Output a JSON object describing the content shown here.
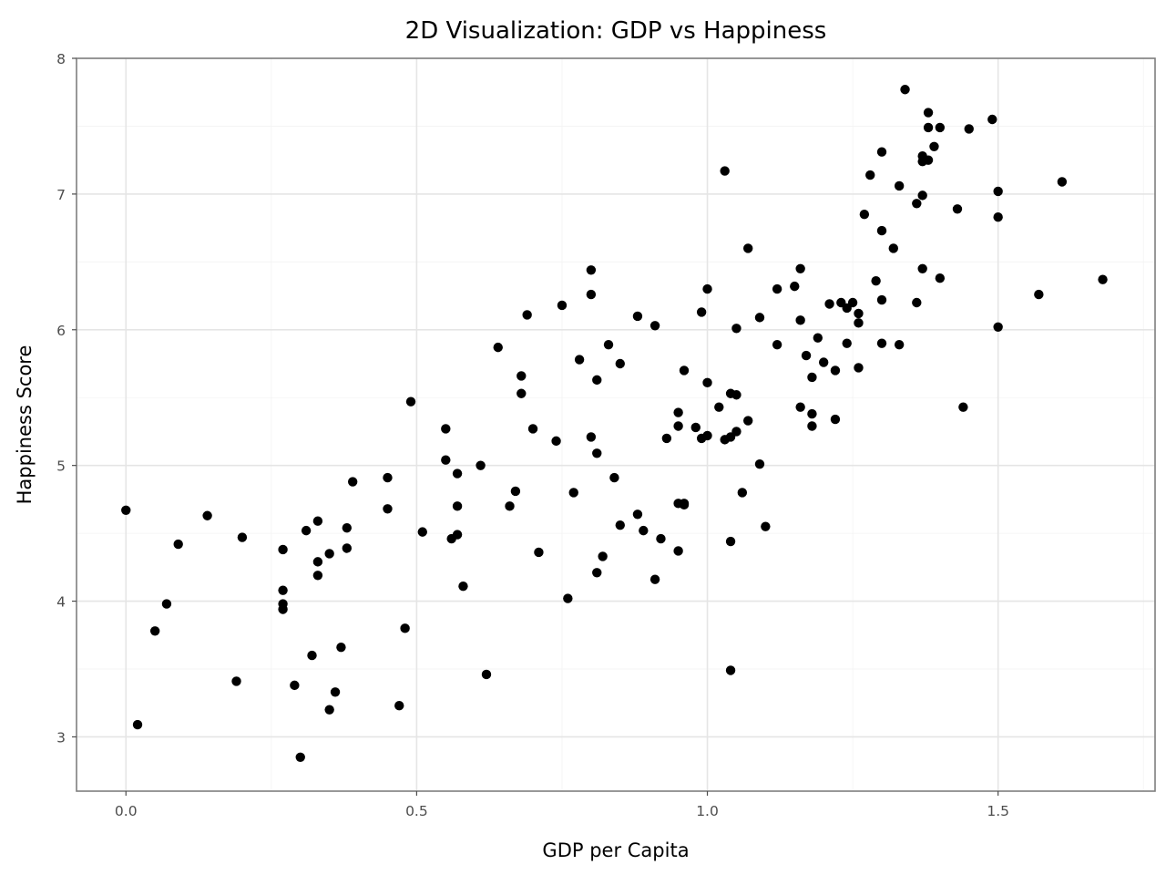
{
  "chart_data": {
    "type": "scatter",
    "title": "2D Visualization: GDP vs Happiness",
    "xlabel": "GDP per Capita",
    "ylabel": "Happiness Score",
    "xlim": [
      -0.085,
      1.77
    ],
    "ylim": [
      2.6,
      8.0
    ],
    "x_ticks": [
      0.0,
      0.5,
      1.0,
      1.5
    ],
    "x_tick_labels": [
      "0.0",
      "0.5",
      "1.0",
      "1.5"
    ],
    "y_ticks": [
      3,
      4,
      5,
      6,
      7,
      8
    ],
    "y_tick_labels": [
      "3",
      "4",
      "5",
      "6",
      "7",
      "8"
    ],
    "grid": true,
    "legend": "none",
    "point_color": "#000000",
    "points": [
      [
        0.0,
        4.67
      ],
      [
        0.02,
        3.09
      ],
      [
        0.05,
        3.78
      ],
      [
        0.07,
        3.98
      ],
      [
        0.09,
        4.42
      ],
      [
        0.14,
        4.63
      ],
      [
        0.19,
        3.41
      ],
      [
        0.2,
        4.47
      ],
      [
        0.27,
        4.38
      ],
      [
        0.27,
        4.08
      ],
      [
        0.27,
        3.98
      ],
      [
        0.27,
        3.94
      ],
      [
        0.29,
        3.38
      ],
      [
        0.3,
        2.85
      ],
      [
        0.31,
        4.52
      ],
      [
        0.32,
        3.6
      ],
      [
        0.33,
        4.59
      ],
      [
        0.33,
        4.19
      ],
      [
        0.33,
        4.29
      ],
      [
        0.35,
        4.35
      ],
      [
        0.35,
        3.2
      ],
      [
        0.36,
        3.33
      ],
      [
        0.37,
        3.66
      ],
      [
        0.38,
        4.54
      ],
      [
        0.38,
        4.39
      ],
      [
        0.39,
        4.88
      ],
      [
        0.45,
        4.91
      ],
      [
        0.45,
        4.68
      ],
      [
        0.47,
        3.23
      ],
      [
        0.48,
        3.8
      ],
      [
        0.49,
        5.47
      ],
      [
        0.51,
        4.51
      ],
      [
        0.55,
        5.27
      ],
      [
        0.55,
        5.04
      ],
      [
        0.56,
        4.46
      ],
      [
        0.57,
        4.94
      ],
      [
        0.57,
        4.49
      ],
      [
        0.57,
        4.7
      ],
      [
        0.58,
        4.11
      ],
      [
        0.61,
        5.0
      ],
      [
        0.62,
        3.46
      ],
      [
        0.64,
        5.87
      ],
      [
        0.66,
        4.7
      ],
      [
        0.67,
        4.81
      ],
      [
        0.68,
        5.66
      ],
      [
        0.68,
        5.53
      ],
      [
        0.69,
        6.11
      ],
      [
        0.7,
        5.27
      ],
      [
        0.71,
        4.36
      ],
      [
        0.74,
        5.18
      ],
      [
        0.75,
        6.18
      ],
      [
        0.76,
        4.02
      ],
      [
        0.77,
        4.8
      ],
      [
        0.78,
        5.78
      ],
      [
        0.8,
        6.26
      ],
      [
        0.8,
        6.44
      ],
      [
        0.8,
        5.21
      ],
      [
        0.81,
        5.63
      ],
      [
        0.81,
        4.21
      ],
      [
        0.81,
        5.09
      ],
      [
        0.82,
        4.33
      ],
      [
        0.83,
        5.89
      ],
      [
        0.84,
        4.91
      ],
      [
        0.85,
        4.56
      ],
      [
        0.85,
        5.75
      ],
      [
        0.88,
        6.1
      ],
      [
        0.88,
        4.64
      ],
      [
        0.89,
        4.52
      ],
      [
        0.91,
        6.03
      ],
      [
        0.91,
        4.16
      ],
      [
        0.92,
        4.46
      ],
      [
        0.93,
        5.2
      ],
      [
        0.95,
        5.39
      ],
      [
        0.95,
        5.29
      ],
      [
        0.95,
        4.72
      ],
      [
        0.95,
        4.37
      ],
      [
        0.96,
        5.7
      ],
      [
        0.96,
        4.71
      ],
      [
        0.96,
        4.72
      ],
      [
        0.98,
        5.28
      ],
      [
        0.99,
        5.2
      ],
      [
        0.99,
        6.13
      ],
      [
        1.0,
        6.3
      ],
      [
        1.0,
        5.22
      ],
      [
        1.0,
        5.61
      ],
      [
        1.02,
        5.43
      ],
      [
        1.03,
        5.19
      ],
      [
        1.03,
        7.17
      ],
      [
        1.04,
        5.53
      ],
      [
        1.04,
        5.21
      ],
      [
        1.04,
        4.44
      ],
      [
        1.04,
        3.49
      ],
      [
        1.05,
        5.52
      ],
      [
        1.05,
        6.01
      ],
      [
        1.05,
        5.25
      ],
      [
        1.06,
        4.8
      ],
      [
        1.07,
        5.33
      ],
      [
        1.07,
        6.6
      ],
      [
        1.09,
        5.01
      ],
      [
        1.09,
        6.09
      ],
      [
        1.1,
        4.55
      ],
      [
        1.12,
        5.89
      ],
      [
        1.12,
        6.3
      ],
      [
        1.15,
        6.32
      ],
      [
        1.16,
        5.43
      ],
      [
        1.16,
        6.45
      ],
      [
        1.16,
        6.07
      ],
      [
        1.17,
        5.81
      ],
      [
        1.18,
        5.65
      ],
      [
        1.18,
        5.38
      ],
      [
        1.18,
        5.29
      ],
      [
        1.19,
        5.94
      ],
      [
        1.2,
        5.76
      ],
      [
        1.21,
        6.19
      ],
      [
        1.22,
        5.7
      ],
      [
        1.22,
        5.34
      ],
      [
        1.23,
        6.2
      ],
      [
        1.24,
        5.9
      ],
      [
        1.24,
        6.16
      ],
      [
        1.25,
        6.2
      ],
      [
        1.26,
        6.12
      ],
      [
        1.26,
        5.72
      ],
      [
        1.26,
        6.05
      ],
      [
        1.27,
        6.85
      ],
      [
        1.28,
        7.14
      ],
      [
        1.29,
        6.36
      ],
      [
        1.3,
        6.22
      ],
      [
        1.3,
        6.73
      ],
      [
        1.3,
        5.9
      ],
      [
        1.3,
        7.31
      ],
      [
        1.32,
        6.6
      ],
      [
        1.33,
        5.89
      ],
      [
        1.33,
        7.06
      ],
      [
        1.34,
        7.77
      ],
      [
        1.36,
        6.93
      ],
      [
        1.36,
        6.2
      ],
      [
        1.37,
        7.28
      ],
      [
        1.37,
        6.45
      ],
      [
        1.37,
        7.24
      ],
      [
        1.37,
        6.99
      ],
      [
        1.38,
        7.25
      ],
      [
        1.38,
        7.49
      ],
      [
        1.38,
        7.6
      ],
      [
        1.39,
        7.35
      ],
      [
        1.4,
        7.49
      ],
      [
        1.4,
        6.38
      ],
      [
        1.43,
        6.89
      ],
      [
        1.44,
        5.43
      ],
      [
        1.45,
        7.48
      ],
      [
        1.49,
        7.55
      ],
      [
        1.5,
        7.02
      ],
      [
        1.5,
        6.83
      ],
      [
        1.5,
        6.02
      ],
      [
        1.57,
        6.26
      ],
      [
        1.61,
        7.09
      ],
      [
        1.68,
        6.37
      ]
    ]
  }
}
